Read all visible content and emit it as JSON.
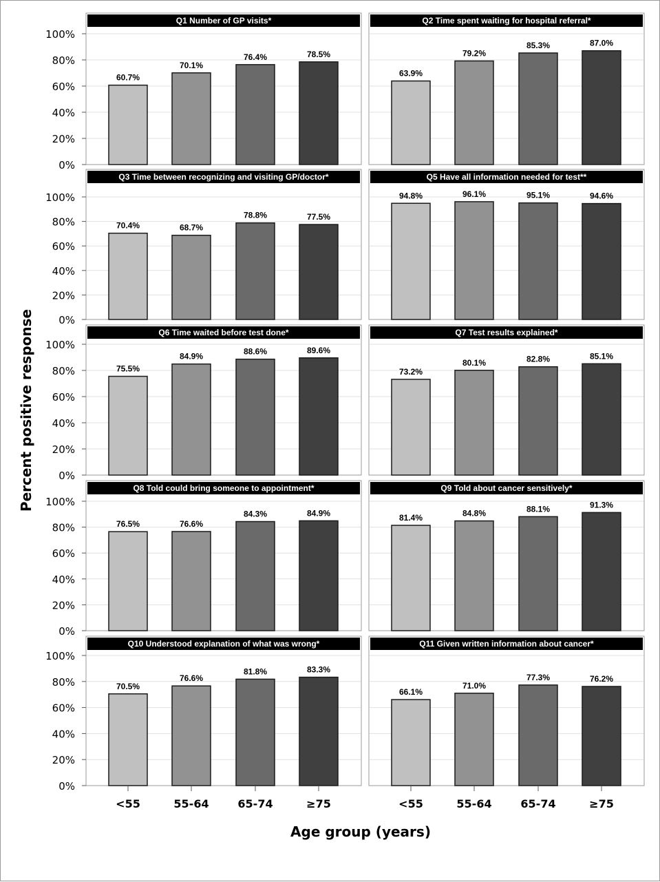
{
  "chart_data": {
    "type": "bar",
    "ylabel": "Percent positive response",
    "xlabel": "Age group (years)",
    "ylim": [
      0,
      100
    ],
    "yticks": [
      "0%",
      "20%",
      "40%",
      "60%",
      "80%",
      "100%"
    ],
    "categories": [
      "<55",
      "55-64",
      "65-74",
      "≥75"
    ],
    "bar_colors": [
      "#c0c0c0",
      "#929292",
      "#6a6a6a",
      "#404040"
    ],
    "grid": true,
    "panels": [
      {
        "title": "Q1 Number of GP visits*",
        "values": [
          60.7,
          70.1,
          76.4,
          78.5
        ],
        "labels": [
          "60.7%",
          "70.1%",
          "76.4%",
          "78.5%"
        ]
      },
      {
        "title": "Q2 Time spent waiting for hospital referral*",
        "values": [
          63.9,
          79.2,
          85.3,
          87.0
        ],
        "labels": [
          "63.9%",
          "79.2%",
          "85.3%",
          "87.0%"
        ]
      },
      {
        "title": "Q3 Time between recognizing and visiting GP/doctor*",
        "values": [
          70.4,
          68.7,
          78.8,
          77.5
        ],
        "labels": [
          "70.4%",
          "68.7%",
          "78.8%",
          "77.5%"
        ]
      },
      {
        "title": "Q5 Have all information needed for test**",
        "values": [
          94.8,
          96.1,
          95.1,
          94.6
        ],
        "labels": [
          "94.8%",
          "96.1%",
          "95.1%",
          "94.6%"
        ]
      },
      {
        "title": "Q6 Time waited before test done*",
        "values": [
          75.5,
          84.9,
          88.6,
          89.6
        ],
        "labels": [
          "75.5%",
          "84.9%",
          "88.6%",
          "89.6%"
        ]
      },
      {
        "title": "Q7 Test results explained*",
        "values": [
          73.2,
          80.1,
          82.8,
          85.1
        ],
        "labels": [
          "73.2%",
          "80.1%",
          "82.8%",
          "85.1%"
        ]
      },
      {
        "title": "Q8 Told could bring someone to appointment*",
        "values": [
          76.5,
          76.6,
          84.3,
          84.9
        ],
        "labels": [
          "76.5%",
          "76.6%",
          "84.3%",
          "84.9%"
        ]
      },
      {
        "title": "Q9 Told about cancer sensitively*",
        "values": [
          81.4,
          84.8,
          88.1,
          91.3
        ],
        "labels": [
          "81.4%",
          "84.8%",
          "88.1%",
          "91.3%"
        ]
      },
      {
        "title": "Q10 Understood explanation of what was wrong*",
        "values": [
          70.5,
          76.6,
          81.8,
          83.3
        ],
        "labels": [
          "70.5%",
          "76.6%",
          "81.8%",
          "83.3%"
        ]
      },
      {
        "title": "Q11 Given written information about cancer*",
        "values": [
          66.1,
          71.0,
          77.3,
          76.2
        ],
        "labels": [
          "66.1%",
          "71.0%",
          "77.3%",
          "76.2%"
        ]
      }
    ]
  }
}
